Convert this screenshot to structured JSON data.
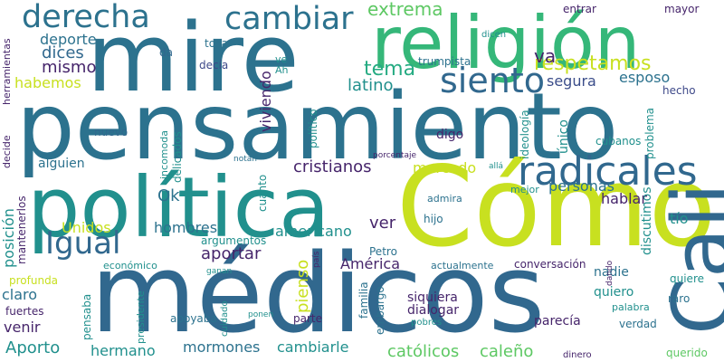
{
  "palette": {
    "navy": "#3b4d8a",
    "indigo": "#433e85",
    "purple": "#46256b",
    "blue": "#31688e",
    "steel": "#2c728e",
    "teal": "#21908d",
    "sea": "#25ab82",
    "green": "#35b779",
    "grass": "#5dc863",
    "lime": "#a8db34",
    "yellow": "#c8e020",
    "dark": "#3e4989"
  },
  "words": [
    {
      "text": "pensamiento",
      "color": "steel"
    },
    {
      "text": "médicos",
      "color": "blue"
    },
    {
      "text": "mire",
      "color": "steel"
    },
    {
      "text": "Cómo",
      "color": "yellow"
    },
    {
      "text": "política",
      "color": "teal"
    },
    {
      "text": "religión",
      "color": "green"
    },
    {
      "text": "Cali",
      "color": "blue"
    },
    {
      "text": "radicales",
      "color": "blue"
    },
    {
      "text": "derecha",
      "color": "steel"
    },
    {
      "text": "cambiar",
      "color": "steel"
    },
    {
      "text": "siento",
      "color": "blue"
    },
    {
      "text": "Igual",
      "color": "blue"
    },
    {
      "text": "respetamos",
      "color": "yellow"
    },
    {
      "text": "tema",
      "color": "sea"
    },
    {
      "text": "extrema",
      "color": "grass"
    },
    {
      "text": "deporte",
      "color": "steel"
    },
    {
      "text": "dices",
      "color": "blue"
    },
    {
      "text": "mismo",
      "color": "purple"
    },
    {
      "text": "habemos",
      "color": "yellow"
    },
    {
      "text": "va",
      "color": "purple"
    },
    {
      "text": "latino",
      "color": "teal"
    },
    {
      "text": "segura",
      "color": "navy"
    },
    {
      "text": "esposo",
      "color": "steel"
    },
    {
      "text": "hecho",
      "color": "dark"
    },
    {
      "text": "entrar",
      "color": "purple"
    },
    {
      "text": "mayor",
      "color": "purple"
    },
    {
      "text": "dicen",
      "color": "teal"
    },
    {
      "text": "toca",
      "color": "steel"
    },
    {
      "text": "da",
      "color": "blue"
    },
    {
      "text": "decía",
      "color": "dark"
    },
    {
      "text": "ve",
      "color": "teal"
    },
    {
      "text": "Ah",
      "color": "teal"
    },
    {
      "text": "trumpista",
      "color": "steel"
    },
    {
      "text": "nuevo",
      "color": "blue"
    },
    {
      "text": "viviendo",
      "color": "purple"
    },
    {
      "text": "digo",
      "color": "purple"
    },
    {
      "text": "cubanos",
      "color": "teal"
    },
    {
      "text": "cristianos",
      "color": "purple"
    },
    {
      "text": "marcado",
      "color": "yellow"
    },
    {
      "text": "alguien",
      "color": "steel"
    },
    {
      "text": "personas",
      "color": "steel"
    },
    {
      "text": "Ok",
      "color": "steel"
    },
    {
      "text": "hablar",
      "color": "purple"
    },
    {
      "text": "admira",
      "color": "steel"
    },
    {
      "text": "hijo",
      "color": "steel"
    },
    {
      "text": "discutimos",
      "color": "teal"
    },
    {
      "text": "tío",
      "color": "teal"
    },
    {
      "text": "Unidos",
      "color": "yellow"
    },
    {
      "text": "hombres",
      "color": "steel"
    },
    {
      "text": "americano",
      "color": "teal"
    },
    {
      "text": "ver",
      "color": "purple"
    },
    {
      "text": "argumentos",
      "color": "teal"
    },
    {
      "text": "aportar",
      "color": "purple"
    },
    {
      "text": "Petro",
      "color": "steel"
    },
    {
      "text": "América",
      "color": "purple"
    },
    {
      "text": "económico",
      "color": "teal"
    },
    {
      "text": "actualmente",
      "color": "steel"
    },
    {
      "text": "conversación",
      "color": "purple"
    },
    {
      "text": "nadie",
      "color": "steel"
    },
    {
      "text": "profunda",
      "color": "yellow"
    },
    {
      "text": "claro",
      "color": "steel"
    },
    {
      "text": "fuertes",
      "color": "purple"
    },
    {
      "text": "venir",
      "color": "purple"
    },
    {
      "text": "parte",
      "color": "purple"
    },
    {
      "text": "siquiera",
      "color": "purple"
    },
    {
      "text": "dialogar",
      "color": "purple"
    },
    {
      "text": "quiero",
      "color": "teal"
    },
    {
      "text": "quiere",
      "color": "teal"
    },
    {
      "text": "raro",
      "color": "steel"
    },
    {
      "text": "pobres",
      "color": "teal"
    },
    {
      "text": "parecía",
      "color": "purple"
    },
    {
      "text": "verdad",
      "color": "steel"
    },
    {
      "text": "Aporto",
      "color": "teal"
    },
    {
      "text": "hermano",
      "color": "teal"
    },
    {
      "text": "mormones",
      "color": "steel"
    },
    {
      "text": "cambiarle",
      "color": "teal"
    },
    {
      "text": "católicos",
      "color": "grass"
    },
    {
      "text": "caleño",
      "color": "grass"
    },
    {
      "text": "querido",
      "color": "grass"
    },
    {
      "text": "dinero",
      "color": "purple"
    },
    {
      "text": "apoyaba",
      "color": "steel"
    },
    {
      "text": "ponen",
      "color": "teal"
    },
    {
      "text": "notan",
      "color": "steel"
    },
    {
      "text": "porcentaje",
      "color": "purple"
    },
    {
      "text": "allá",
      "color": "teal"
    },
    {
      "text": "mejor",
      "color": "teal"
    },
    {
      "text": "ganan",
      "color": "teal"
    },
    {
      "text": "herramientas",
      "color": "purple"
    },
    {
      "text": "decide",
      "color": "purple"
    },
    {
      "text": "mantenerlos",
      "color": "purple"
    },
    {
      "text": "posición",
      "color": "teal"
    },
    {
      "text": "incomoda",
      "color": "teal"
    },
    {
      "text": "delicados",
      "color": "teal"
    },
    {
      "text": "cuanto",
      "color": "teal"
    },
    {
      "text": "presidente",
      "color": "teal"
    },
    {
      "text": "pensaba",
      "color": "teal"
    },
    {
      "text": "cuidado",
      "color": "teal"
    },
    {
      "text": "pienso",
      "color": "yellow"
    },
    {
      "text": "familia",
      "color": "steel"
    },
    {
      "text": "embargo",
      "color": "steel"
    },
    {
      "text": "político",
      "color": "teal"
    },
    {
      "text": "ideología",
      "color": "teal"
    },
    {
      "text": "único",
      "color": "teal"
    },
    {
      "text": "país",
      "color": "purple"
    },
    {
      "text": "dando",
      "color": "purple"
    },
    {
      "text": "problema",
      "color": "teal"
    },
    {
      "text": "palabra",
      "color": "teal"
    }
  ]
}
